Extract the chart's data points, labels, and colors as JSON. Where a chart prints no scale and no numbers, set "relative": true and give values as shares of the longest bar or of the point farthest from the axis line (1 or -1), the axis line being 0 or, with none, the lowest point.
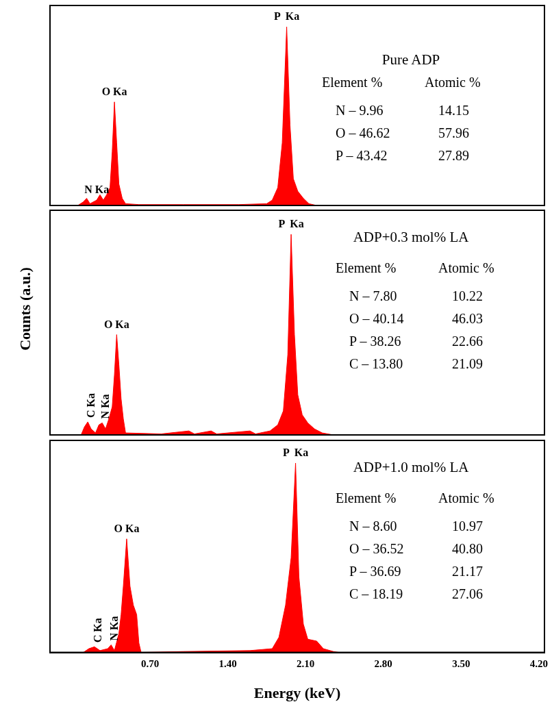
{
  "chart_data": [
    {
      "type": "area",
      "relative": true,
      "title": "Pure ADP",
      "xlim": [
        -0.2,
        4.25
      ],
      "tick_labels": false,
      "x": [
        -0.2,
        0.05,
        0.1,
        0.13,
        0.16,
        0.22,
        0.25,
        0.28,
        0.31,
        0.34,
        0.36,
        0.38,
        0.4,
        0.42,
        0.45,
        0.48,
        0.6,
        1.0,
        1.5,
        1.75,
        1.8,
        1.85,
        1.89,
        1.93,
        1.96,
        1.99,
        2.03,
        2.08,
        2.13,
        2.2
      ],
      "series": [
        {
          "color": "#ff0000",
          "values": [
            0,
            0,
            0.02,
            0.04,
            0.01,
            0.03,
            0.06,
            0.03,
            0.06,
            0.1,
            0.3,
            0.58,
            0.35,
            0.12,
            0.04,
            0.01,
            0.005,
            0.005,
            0.005,
            0.01,
            0.03,
            0.1,
            0.35,
            1.0,
            0.45,
            0.15,
            0.08,
            0.04,
            0.01,
            0
          ]
        }
      ],
      "annotations": [
        {
          "text": "P  Ka",
          "x": 1.93,
          "y": 1.0
        },
        {
          "text": "O Ka",
          "x": 0.38,
          "y": 0.58
        },
        {
          "text": "N Ka",
          "x": 0.22,
          "y": 0.03
        },
        "Element %",
        "Atomic %",
        "N – 9.96",
        "14.15",
        "O – 46.62",
        "57.96",
        "P – 43.42",
        "27.89"
      ]
    },
    {
      "type": "area",
      "relative": true,
      "title": "ADP+0.3 mol% LA",
      "ylabel": "Counts (a.u.)",
      "xlim": [
        -0.2,
        4.25
      ],
      "tick_labels": false,
      "x": [
        -0.2,
        0.08,
        0.11,
        0.14,
        0.17,
        0.21,
        0.24,
        0.27,
        0.3,
        0.33,
        0.36,
        0.38,
        0.4,
        0.42,
        0.44,
        0.46,
        0.48,
        0.8,
        1.05,
        1.1,
        1.25,
        1.3,
        1.6,
        1.65,
        1.78,
        1.85,
        1.9,
        1.94,
        1.97,
        2.0,
        2.03,
        2.07,
        2.12,
        2.18,
        2.25,
        2.35
      ],
      "series": [
        {
          "color": "#ff0000",
          "values": [
            0,
            0,
            0.04,
            0.065,
            0.03,
            0.01,
            0.05,
            0.06,
            0.03,
            0.08,
            0.14,
            0.3,
            0.5,
            0.35,
            0.18,
            0.08,
            0.01,
            0.005,
            0.02,
            0.005,
            0.02,
            0.005,
            0.02,
            0.005,
            0.02,
            0.05,
            0.12,
            0.4,
            1.0,
            0.5,
            0.2,
            0.1,
            0.06,
            0.03,
            0.01,
            0
          ]
        }
      ],
      "annotations": [
        {
          "text": "P  Ka",
          "x": 1.97,
          "y": 1.0
        },
        {
          "text": "O Ka",
          "x": 0.4,
          "y": 0.5
        },
        {
          "text": "C Ka",
          "x": 0.14,
          "y": 0.065
        },
        {
          "text": "N Ka",
          "x": 0.27,
          "y": 0.06
        },
        "Element %",
        "Atomic %",
        "N – 7.80",
        "10.22",
        "O – 40.14",
        "46.03",
        "P – 38.26",
        "22.66",
        "C – 13.80",
        "21.09"
      ]
    },
    {
      "type": "area",
      "relative": true,
      "title": "ADP+1.0 mol% LA",
      "xlabel": "Energy (keV)",
      "xlim": [
        -0.2,
        4.25
      ],
      "tick_labels": "x",
      "xticks": [
        {
          "value": 0.7,
          "label": "0.70"
        },
        {
          "value": 1.4,
          "label": "1.40"
        },
        {
          "value": 2.1,
          "label": "2.10"
        },
        {
          "value": 2.8,
          "label": "2.80"
        },
        {
          "value": 3.5,
          "label": "3.50"
        },
        {
          "value": 4.2,
          "label": "4.20"
        }
      ],
      "x": [
        -0.2,
        0.1,
        0.15,
        0.2,
        0.25,
        0.32,
        0.35,
        0.38,
        0.42,
        0.44,
        0.46,
        0.49,
        0.52,
        0.55,
        0.58,
        0.6,
        0.62,
        1.0,
        1.6,
        1.8,
        1.86,
        1.92,
        1.97,
        2.01,
        2.04,
        2.08,
        2.12,
        2.2,
        2.26,
        2.35,
        2.4
      ],
      "series": [
        {
          "color": "#ff0000",
          "values": [
            0,
            0,
            0.02,
            0.03,
            0.01,
            0.02,
            0.04,
            0.01,
            0.1,
            0.2,
            0.35,
            0.6,
            0.35,
            0.25,
            0.2,
            0.05,
            0,
            0.005,
            0.01,
            0.02,
            0.08,
            0.25,
            0.5,
            1.0,
            0.4,
            0.15,
            0.07,
            0.06,
            0.02,
            0.005,
            0
          ]
        }
      ],
      "annotations": [
        {
          "text": "P  Ka",
          "x": 2.01,
          "y": 1.0
        },
        {
          "text": "O Ka",
          "x": 0.49,
          "y": 0.6
        },
        {
          "text": "C Ka",
          "x": 0.2,
          "y": 0.03
        },
        {
          "text": "N Ka",
          "x": 0.35,
          "y": 0.04
        },
        "Element %",
        "Atomic %",
        "N – 8.60",
        "10.97",
        "O – 36.52",
        "40.80",
        "P – 36.69",
        "21.17",
        "C – 18.19",
        "27.06"
      ]
    }
  ]
}
